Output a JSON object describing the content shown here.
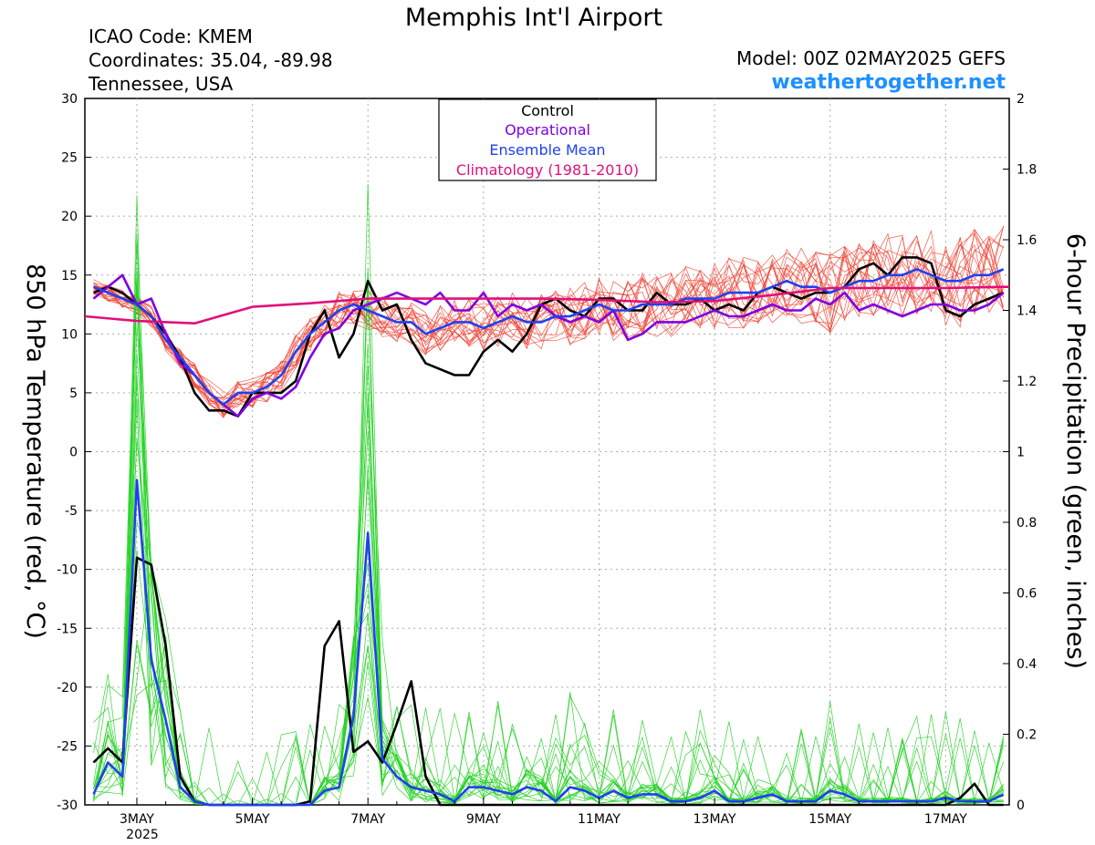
{
  "header": {
    "title": "Memphis Int'l Airport",
    "icao": "ICAO Code: KMEM",
    "coords": "Coordinates: 35.04, -89.98",
    "location": "Tennessee, USA",
    "model": "Model: 00Z 02MAY2025 GEFS",
    "site": "weathertogether.net"
  },
  "colors": {
    "control": "#000000",
    "operational": "#8000e0",
    "ensemble_mean": "#2040f0",
    "climatology": "#e0107a",
    "temperature_members": "#f04030",
    "precip_members": "#20d020",
    "site": "#1e90ff"
  },
  "chart_data": {
    "type": "line",
    "xlabel": "",
    "ylabel_left": "850 hPa Temperature (red, °C)",
    "ylabel_right": "6-hour Precipitation (green, inches)",
    "x_unit": "days from 00Z 02MAY2025",
    "xlim": [
      0.1,
      16.1
    ],
    "ylim_left": [
      -30,
      30
    ],
    "ylim_right": [
      0,
      2
    ],
    "left_ticks": [
      "30",
      "25",
      "20",
      "15",
      "10",
      "5",
      "0",
      "-5",
      "-10",
      "-15",
      "-20",
      "-25",
      "-30"
    ],
    "right_ticks": [
      "2",
      "1.8",
      "1.6",
      "1.4",
      "1.2",
      "1",
      "0.8",
      "0.6",
      "0.4",
      "0.2",
      "0"
    ],
    "x_tick_positions": [
      1,
      3,
      5,
      7,
      9,
      11,
      13,
      15
    ],
    "x_tick_labels": [
      "3MAY",
      "5MAY",
      "7MAY",
      "9MAY",
      "11MAY",
      "13MAY",
      "15MAY",
      "17MAY"
    ],
    "x_sublabel": "2025",
    "grid": true,
    "legend": {
      "placement": "top-center",
      "entries": [
        "Control",
        "Operational",
        "Ensemble Mean",
        "Climatology (1981-2010)"
      ]
    },
    "series": [
      {
        "name": "Control",
        "axis": "left",
        "x": [
          0.25,
          0.5,
          0.75,
          1,
          1.25,
          1.5,
          1.75,
          2,
          2.25,
          2.5,
          2.75,
          3,
          3.25,
          3.5,
          3.75,
          4,
          4.25,
          4.5,
          4.75,
          5,
          5.25,
          5.5,
          5.75,
          6,
          6.25,
          6.5,
          6.75,
          7,
          7.25,
          7.5,
          7.75,
          8,
          8.25,
          8.5,
          8.75,
          9,
          9.25,
          9.5,
          9.75,
          10,
          10.25,
          10.5,
          10.75,
          11,
          11.25,
          11.5,
          11.75,
          12,
          12.25,
          12.5,
          12.75,
          13,
          13.25,
          13.5,
          13.75,
          14,
          14.25,
          14.5,
          14.75,
          15,
          15.25,
          15.5,
          15.75,
          16
        ],
        "values": [
          13.5,
          14.0,
          13.5,
          12.5,
          11.5,
          10.0,
          8.0,
          5.0,
          3.5,
          3.5,
          3.0,
          5.0,
          5.0,
          5.0,
          6.0,
          10.0,
          12.0,
          8.0,
          10.0,
          14.5,
          12.0,
          12.5,
          9.5,
          7.5,
          7.0,
          6.5,
          6.5,
          8.5,
          9.5,
          8.5,
          10.0,
          12.5,
          13.0,
          12.0,
          11.5,
          13.0,
          13.0,
          12.0,
          12.0,
          13.5,
          12.5,
          12.5,
          13.0,
          12.0,
          12.5,
          12.0,
          13.5,
          14.0,
          13.5,
          13.0,
          13.5,
          13.5,
          14.0,
          15.5,
          16.0,
          15.0,
          16.5,
          16.5,
          16.0,
          12.0,
          11.5,
          12.5,
          13.0,
          13.5
        ]
      },
      {
        "name": "Operational",
        "axis": "left",
        "x": [
          0.25,
          0.5,
          0.75,
          1,
          1.25,
          1.5,
          1.75,
          2,
          2.25,
          2.5,
          2.75,
          3,
          3.25,
          3.5,
          3.75,
          4,
          4.25,
          4.5,
          4.75,
          5,
          5.25,
          5.5,
          5.75,
          6,
          6.25,
          6.5,
          6.75,
          7,
          7.25,
          7.5,
          7.75,
          8,
          8.25,
          8.5,
          8.75,
          9,
          9.25,
          9.5,
          9.75,
          10,
          10.25,
          10.5,
          10.75,
          11,
          11.25,
          11.5,
          11.75,
          12,
          12.25,
          12.5,
          12.75,
          13,
          13.25,
          13.5,
          13.75,
          14,
          14.25,
          14.5,
          14.75,
          15,
          15.25,
          15.5,
          15.75,
          16
        ],
        "values": [
          13.0,
          14.0,
          15.0,
          12.5,
          13.0,
          10.0,
          7.5,
          6.5,
          5.0,
          4.0,
          3.0,
          4.5,
          5.0,
          4.5,
          5.5,
          8.0,
          10.0,
          10.5,
          12.0,
          12.5,
          13.0,
          13.5,
          13.0,
          12.5,
          13.5,
          12.0,
          12.0,
          13.5,
          11.5,
          12.5,
          12.0,
          12.5,
          11.5,
          11.0,
          11.5,
          11.0,
          12.0,
          9.5,
          10.0,
          11.0,
          11.0,
          11.0,
          11.5,
          12.0,
          11.5,
          11.5,
          12.0,
          12.5,
          12.0,
          12.0,
          13.0,
          12.5,
          13.5,
          12.0,
          12.5,
          12.0,
          11.5,
          12.0,
          12.5,
          12.5,
          12.0,
          12.0,
          12.5,
          13.5
        ]
      },
      {
        "name": "Ensemble Mean",
        "axis": "left",
        "x": [
          0.25,
          0.5,
          0.75,
          1,
          1.25,
          1.5,
          1.75,
          2,
          2.25,
          2.5,
          2.75,
          3,
          3.25,
          3.5,
          3.75,
          4,
          4.25,
          4.5,
          4.75,
          5,
          5.25,
          5.5,
          5.75,
          6,
          6.25,
          6.5,
          6.75,
          7,
          7.25,
          7.5,
          7.75,
          8,
          8.25,
          8.5,
          8.75,
          9,
          9.25,
          9.5,
          9.75,
          10,
          10.25,
          10.5,
          10.75,
          11,
          11.25,
          11.5,
          11.75,
          12,
          12.25,
          12.5,
          12.75,
          13,
          13.25,
          13.5,
          13.75,
          14,
          14.25,
          14.5,
          14.75,
          15,
          15.25,
          15.5,
          15.75,
          16
        ],
        "values": [
          14.0,
          13.5,
          13.0,
          12.5,
          11.5,
          9.5,
          8.0,
          6.5,
          5.0,
          4.0,
          5.0,
          5.0,
          5.5,
          6.5,
          8.5,
          10.0,
          11.0,
          12.0,
          12.5,
          12.0,
          11.5,
          11.0,
          11.0,
          10.0,
          10.5,
          11.0,
          11.0,
          10.5,
          11.0,
          11.5,
          11.0,
          11.0,
          11.5,
          11.5,
          12.0,
          12.5,
          12.0,
          12.0,
          12.5,
          12.5,
          12.5,
          13.0,
          13.0,
          13.0,
          13.5,
          13.5,
          13.5,
          14.0,
          14.5,
          14.0,
          14.0,
          13.5,
          14.0,
          14.5,
          14.5,
          15.0,
          15.0,
          15.5,
          15.0,
          14.5,
          14.5,
          15.0,
          15.0,
          15.5
        ]
      },
      {
        "name": "Climatology (1981-2010)",
        "axis": "left",
        "x": [
          0.1,
          1,
          2,
          3,
          4,
          5,
          6,
          7,
          8,
          9,
          10,
          11,
          12,
          13,
          14,
          15,
          16,
          16.1
        ],
        "values": [
          11.5,
          11.1,
          10.9,
          12.3,
          12.6,
          13.0,
          13.0,
          13.0,
          13.0,
          12.9,
          12.7,
          12.8,
          13.3,
          13.9,
          13.9,
          13.9,
          14.0,
          14.0
        ]
      },
      {
        "name": "Control",
        "axis": "right",
        "x": [
          0.25,
          0.5,
          0.75,
          1,
          1.25,
          1.5,
          1.75,
          2,
          2.25,
          2.5,
          2.75,
          3,
          3.25,
          3.5,
          3.75,
          4,
          4.25,
          4.5,
          4.75,
          5,
          5.25,
          5.5,
          5.75,
          6,
          6.25,
          6.5,
          6.75,
          7,
          7.25,
          7.5,
          7.75,
          8,
          8.25,
          8.5,
          8.75,
          9,
          9.25,
          9.5,
          9.75,
          10,
          10.25,
          10.5,
          10.75,
          11,
          11.25,
          11.5,
          11.75,
          12,
          12.25,
          12.5,
          12.75,
          13,
          13.25,
          13.5,
          13.75,
          14,
          14.25,
          14.5,
          14.75,
          15,
          15.25,
          15.5,
          15.75,
          16
        ],
        "values": [
          0.12,
          0.16,
          0.12,
          0.7,
          0.68,
          0.45,
          0.08,
          0.01,
          0,
          0,
          0,
          0,
          0,
          0,
          0,
          0.01,
          0.45,
          0.52,
          0.15,
          0.18,
          0.12,
          0.23,
          0.35,
          0.08,
          0,
          0,
          0,
          0,
          0,
          0,
          0,
          0,
          0,
          0,
          0,
          0,
          0,
          0,
          0,
          0,
          0,
          0,
          0,
          0,
          0,
          0,
          0,
          0,
          0,
          0,
          0,
          0,
          0,
          0,
          0,
          0,
          0,
          0,
          0,
          0,
          0.02,
          0.06,
          0,
          0
        ]
      },
      {
        "name": "Ensemble Mean",
        "axis": "right",
        "x": [
          0.25,
          0.5,
          0.75,
          1,
          1.25,
          1.5,
          1.75,
          2,
          2.25,
          2.5,
          2.75,
          3,
          3.25,
          3.5,
          3.75,
          4,
          4.25,
          4.5,
          4.75,
          5,
          5.25,
          5.5,
          5.75,
          6,
          6.25,
          6.5,
          6.75,
          7,
          7.25,
          7.5,
          7.75,
          8,
          8.25,
          8.5,
          8.75,
          9,
          9.25,
          9.5,
          9.75,
          10,
          10.25,
          10.5,
          10.75,
          11,
          11.25,
          11.5,
          11.75,
          12,
          12.25,
          12.5,
          12.75,
          13,
          13.25,
          13.5,
          13.75,
          14,
          14.25,
          14.5,
          14.75,
          15,
          15.25,
          15.5,
          15.75,
          16
        ],
        "values": [
          0.03,
          0.12,
          0.08,
          0.92,
          0.41,
          0.24,
          0.05,
          0.01,
          0,
          0,
          0,
          0,
          0,
          0,
          0,
          0,
          0.04,
          0.05,
          0.25,
          0.77,
          0.13,
          0.08,
          0.05,
          0.04,
          0.03,
          0.01,
          0.05,
          0.05,
          0.04,
          0.03,
          0.05,
          0.04,
          0.01,
          0.05,
          0.04,
          0.02,
          0.04,
          0.02,
          0.03,
          0.03,
          0.01,
          0.01,
          0.02,
          0.04,
          0.01,
          0.01,
          0.02,
          0.03,
          0.01,
          0.01,
          0.01,
          0.04,
          0.03,
          0.01,
          0.01,
          0.01,
          0.01,
          0.01,
          0.01,
          0.02,
          0.01,
          0.01,
          0.01,
          0.03
        ]
      }
    ]
  }
}
